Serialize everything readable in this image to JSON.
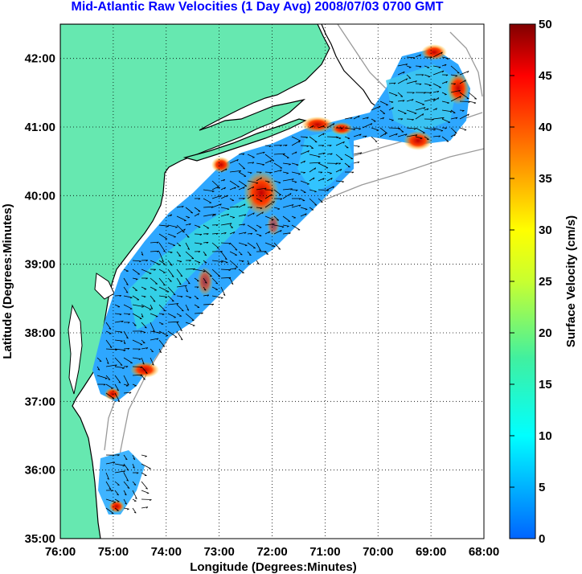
{
  "title": "Mid-Atlantic Raw Velocities (1 Day Avg) 2008/07/03 0700 GMT",
  "map": {
    "x_label": "Longitude (Degrees:Minutes)",
    "y_label": "Latitude (Degrees:Minutes)",
    "x_ticks": [
      "76:00",
      "75:00",
      "74:00",
      "73:00",
      "72:00",
      "71:00",
      "70:00",
      "69:00",
      "68:00"
    ],
    "y_ticks": [
      "42:00",
      "41:00",
      "40:00",
      "39:00",
      "38:00",
      "37:00",
      "36:00",
      "35:00"
    ],
    "lon_range": [
      -76,
      -68
    ],
    "lat_range": [
      35,
      42.5
    ],
    "grid": true,
    "land_color": "#66e8b0",
    "land_outline_color": "#000000",
    "bathymetry_color": "#9a9a9a"
  },
  "colorbar": {
    "label": "Surface Velocity (cm/s)",
    "ticks": [
      "50",
      "45",
      "40",
      "35",
      "30",
      "25",
      "20",
      "15",
      "10",
      "5",
      "0"
    ],
    "min": 0,
    "max": 50,
    "colormap": "jet"
  }
}
